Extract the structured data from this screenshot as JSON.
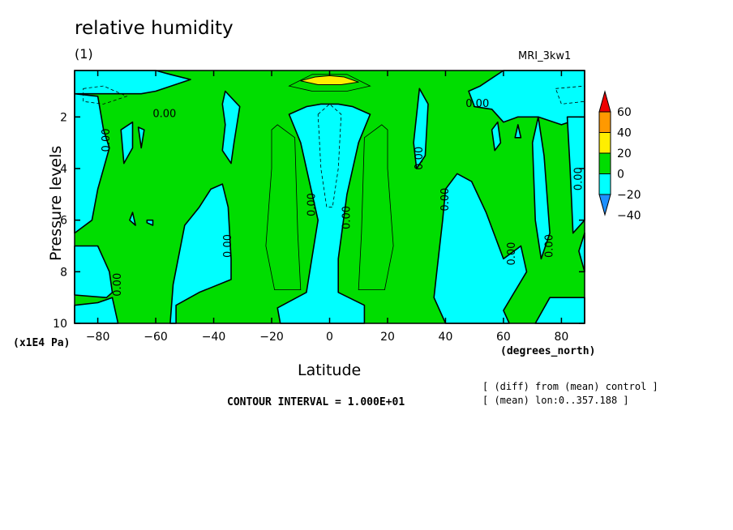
{
  "title": "relative humidity",
  "subtitle": "(1)",
  "model_label": "MRI_3kw1",
  "y_units": "(x1E4 Pa)",
  "x_units": "(degrees_north)",
  "x_axis_label": "Latitude",
  "y_axis_label": "Pressure levels",
  "contour_interval": "CONTOUR INTERVAL = 1.000E+01",
  "notes": [
    "[ (diff) from (mean) control ]",
    "[ (mean) lon:0..357.188 ]"
  ],
  "contour_label_text": "0.00",
  "chart_data": {
    "type": "heatmap",
    "title": "relative humidity",
    "xlabel": "Latitude",
    "ylabel": "Pressure levels",
    "xlim": [
      -88,
      88
    ],
    "ylim": [
      10,
      0.2
    ],
    "x_ticks": [
      -80,
      -60,
      -40,
      -20,
      0,
      20,
      40,
      60,
      80
    ],
    "x_tick_labels": [
      "−80",
      "−60",
      "−40",
      "−20",
      "0",
      "20",
      "40",
      "60",
      "80"
    ],
    "y_ticks": [
      2,
      4,
      6,
      8,
      10
    ],
    "y_tick_labels": [
      "2",
      "4",
      "6",
      "8",
      "10"
    ],
    "colorbar": {
      "levels": [
        -40,
        -20,
        0,
        20,
        40,
        60
      ],
      "level_labels": [
        "−40",
        "−20",
        "0",
        "20",
        "40",
        "60"
      ],
      "colors": [
        "#1e90ff",
        "#00ffff",
        "#00dd00",
        "#ffee00",
        "#ff9900",
        "#ee0000"
      ],
      "placement": "right"
    },
    "fill_colors": {
      "neg": "#00ffff",
      "pos": "#00dd00",
      "high": "#ffee00"
    },
    "regions": [
      {
        "level": "neg",
        "points": [
          [
            -88,
            0.2
          ],
          [
            -60,
            0.2
          ],
          [
            -55,
            0.35
          ],
          [
            -48,
            0.55
          ],
          [
            -60,
            1.0
          ],
          [
            -65,
            1.1
          ],
          [
            -75,
            1.1
          ],
          [
            -88,
            1.1
          ]
        ]
      },
      {
        "level": "neg",
        "points": [
          [
            -88,
            1.1
          ],
          [
            -80,
            1.2
          ],
          [
            -78,
            2.5
          ],
          [
            -76,
            3.2
          ],
          [
            -80,
            4.8
          ],
          [
            -82,
            6.0
          ],
          [
            -88,
            6.5
          ]
        ]
      },
      {
        "level": "neg",
        "points": [
          [
            -72,
            2.5
          ],
          [
            -68,
            2.2
          ],
          [
            -68,
            3.2
          ],
          [
            -71,
            3.8
          ]
        ]
      },
      {
        "level": "neg",
        "points": [
          [
            -66,
            2.4
          ],
          [
            -64,
            2.5
          ],
          [
            -65,
            3.2
          ]
        ]
      },
      {
        "level": "neg",
        "points": [
          [
            -36,
            1.0
          ],
          [
            -31,
            1.6
          ],
          [
            -33,
            3.0
          ],
          [
            -34,
            3.8
          ],
          [
            -37,
            3.3
          ],
          [
            -36,
            2.3
          ],
          [
            -37,
            1.5
          ]
        ]
      },
      {
        "level": "neg",
        "points": [
          [
            -68,
            5.7
          ],
          [
            -67,
            6.2
          ],
          [
            -69,
            6.0
          ]
        ]
      },
      {
        "level": "neg",
        "points": [
          [
            -63,
            6.0
          ],
          [
            -61,
            6.0
          ],
          [
            -61,
            6.2
          ],
          [
            -63,
            6.1
          ]
        ]
      },
      {
        "level": "neg",
        "points": [
          [
            -88,
            7.0
          ],
          [
            -80,
            7.0
          ],
          [
            -76,
            8.0
          ],
          [
            -75,
            8.8
          ],
          [
            -77,
            9.0
          ],
          [
            -88,
            8.9
          ]
        ]
      },
      {
        "level": "neg",
        "points": [
          [
            -88,
            9.3
          ],
          [
            -80,
            9.2
          ],
          [
            -75,
            9.0
          ],
          [
            -73,
            10.0
          ],
          [
            -88,
            10.0
          ]
        ]
      },
      {
        "level": "neg",
        "points": [
          [
            -55,
            10.0
          ],
          [
            -54,
            8.5
          ],
          [
            -50,
            6.2
          ],
          [
            -45,
            5.5
          ],
          [
            -41,
            4.8
          ],
          [
            -37,
            4.6
          ],
          [
            -35,
            5.5
          ],
          [
            -34,
            7.5
          ],
          [
            -34,
            8.3
          ],
          [
            -45,
            8.8
          ],
          [
            -53,
            9.3
          ],
          [
            -53,
            10.0
          ]
        ]
      },
      {
        "level": "neg",
        "points": [
          [
            -14,
            1.9
          ],
          [
            -8,
            1.6
          ],
          [
            -3,
            1.5
          ],
          [
            3,
            1.5
          ],
          [
            8,
            1.6
          ],
          [
            14,
            1.9
          ],
          [
            10,
            3.0
          ],
          [
            6,
            5.0
          ],
          [
            3,
            7.5
          ],
          [
            3,
            8.8
          ],
          [
            12,
            9.3
          ],
          [
            12,
            10.0
          ],
          [
            -17,
            10.0
          ],
          [
            -18,
            9.4
          ],
          [
            -8,
            8.8
          ],
          [
            -4,
            6.0
          ],
          [
            -7,
            4.5
          ],
          [
            -10,
            3.0
          ]
        ]
      },
      {
        "level": "neg",
        "points": [
          [
            31,
            0.9
          ],
          [
            34,
            1.5
          ],
          [
            33,
            3.5
          ],
          [
            30,
            4.0
          ],
          [
            29,
            3.0
          ]
        ]
      },
      {
        "level": "neg",
        "points": [
          [
            88,
            0.2
          ],
          [
            60,
            0.2
          ],
          [
            52,
            0.8
          ],
          [
            48,
            1.0
          ],
          [
            50,
            1.6
          ],
          [
            56,
            1.7
          ],
          [
            60,
            2.2
          ],
          [
            65,
            2.0
          ],
          [
            72,
            2.0
          ],
          [
            80,
            2.3
          ],
          [
            88,
            2.0
          ]
        ]
      },
      {
        "level": "neg",
        "points": [
          [
            58,
            2.2
          ],
          [
            59,
            3.0
          ],
          [
            57,
            3.3
          ],
          [
            56,
            2.5
          ]
        ]
      },
      {
        "level": "neg",
        "points": [
          [
            65,
            2.3
          ],
          [
            66,
            2.8
          ],
          [
            64,
            2.8
          ]
        ]
      },
      {
        "level": "neg",
        "points": [
          [
            72,
            2.0
          ],
          [
            74,
            3.5
          ],
          [
            76,
            6.5
          ],
          [
            73,
            7.5
          ],
          [
            71,
            6.0
          ],
          [
            70,
            3.0
          ]
        ]
      },
      {
        "level": "neg",
        "points": [
          [
            82,
            2.0
          ],
          [
            88,
            2.0
          ],
          [
            88,
            6.0
          ],
          [
            84,
            6.5
          ],
          [
            83,
            4.0
          ]
        ]
      },
      {
        "level": "neg",
        "points": [
          [
            88,
            6.5
          ],
          [
            86,
            7.2
          ],
          [
            88,
            8.0
          ]
        ]
      },
      {
        "level": "neg",
        "points": [
          [
            40,
            10.0
          ],
          [
            36,
            9.0
          ],
          [
            37,
            8.0
          ],
          [
            39,
            6.0
          ],
          [
            40,
            4.8
          ],
          [
            44,
            4.2
          ],
          [
            49,
            4.5
          ],
          [
            54,
            5.7
          ],
          [
            60,
            7.5
          ],
          [
            66,
            7.0
          ],
          [
            68,
            8.0
          ],
          [
            60,
            9.5
          ],
          [
            62,
            10.0
          ]
        ]
      },
      {
        "level": "neg",
        "points": [
          [
            71,
            10.0
          ],
          [
            76,
            9.0
          ],
          [
            88,
            9.0
          ],
          [
            88,
            10.0
          ]
        ]
      },
      {
        "level": "high",
        "points": [
          [
            -10,
            0.6
          ],
          [
            -5,
            0.45
          ],
          [
            0,
            0.4
          ],
          [
            5,
            0.45
          ],
          [
            10,
            0.65
          ],
          [
            4,
            0.75
          ],
          [
            -4,
            0.75
          ]
        ]
      }
    ],
    "contour_labels": [
      {
        "x": -57,
        "y": 1.9
      },
      {
        "x": -77,
        "y": 2.9
      },
      {
        "x": -73,
        "y": 8.5
      },
      {
        "x": -35,
        "y": 7.0
      },
      {
        "x": -6,
        "y": 5.4
      },
      {
        "x": 6,
        "y": 5.9
      },
      {
        "x": 31,
        "y": 3.6
      },
      {
        "x": 40,
        "y": 5.2
      },
      {
        "x": 51,
        "y": 1.5
      },
      {
        "x": 63,
        "y": 7.3
      },
      {
        "x": 76,
        "y": 7.0
      },
      {
        "x": 86,
        "y": 4.4
      }
    ]
  }
}
